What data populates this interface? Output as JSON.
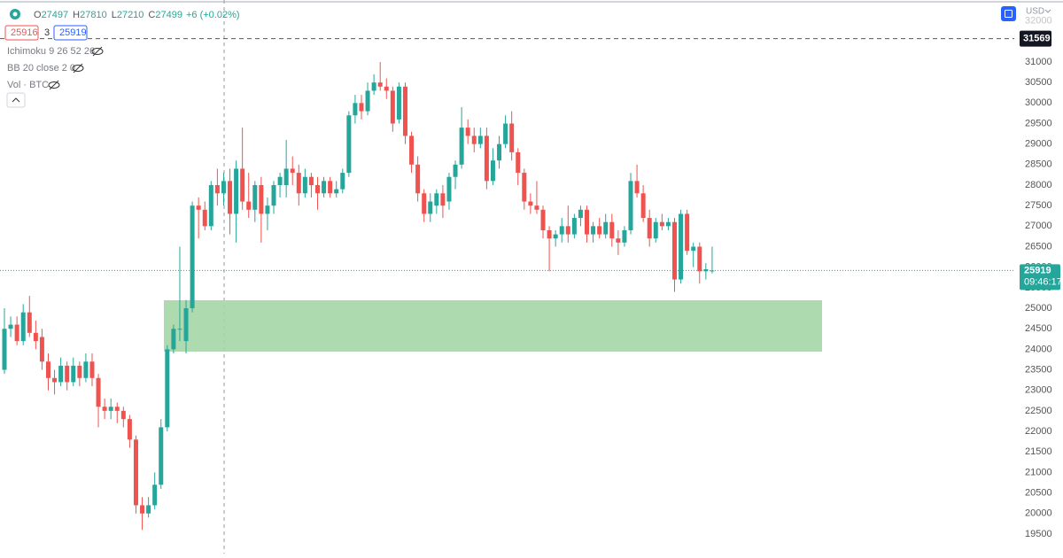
{
  "chart_data": {
    "type": "candlestick",
    "header": {
      "ohlc_labels": [
        "O",
        "H",
        "L",
        "C"
      ],
      "values": [
        27497,
        27810,
        27210,
        27499
      ],
      "change": "+6 (+0.02%)",
      "bid": 25916,
      "spread": 3,
      "ask": 25919,
      "indicators": [
        "Ichimoku 9 26 52 26",
        "BB 20 close 2 0",
        "Vol · BTC"
      ]
    },
    "currency": "USD",
    "up_color": "#26a69a",
    "down_color": "#ef5350",
    "ylim": [
      19023,
      32510
    ],
    "yticks": [
      19500,
      20000,
      20500,
      21000,
      21500,
      22000,
      22500,
      23000,
      23500,
      24000,
      24500,
      25000,
      25500,
      26000,
      26500,
      27000,
      27500,
      28000,
      28500,
      29000,
      29500,
      30000,
      30500,
      31000,
      31500,
      32000
    ],
    "high_marker": 31569,
    "last_price": 25919,
    "countdown": "09:46:17",
    "zone": {
      "low": 23944,
      "high": 25195,
      "color": "#a5d6a7"
    },
    "candles": [
      [
        23500,
        25000,
        23400,
        24500
      ],
      [
        24500,
        24800,
        24300,
        24600
      ],
      [
        24600,
        24800,
        24100,
        24200
      ],
      [
        24200,
        25100,
        24100,
        24900
      ],
      [
        24900,
        25300,
        24300,
        24400
      ],
      [
        24400,
        24700,
        24000,
        24200
      ],
      [
        24300,
        24500,
        23500,
        23700
      ],
      [
        23700,
        23900,
        23000,
        23300
      ],
      [
        23300,
        23500,
        22900,
        23200
      ],
      [
        23200,
        23800,
        23100,
        23600
      ],
      [
        23600,
        23700,
        23000,
        23200
      ],
      [
        23200,
        23800,
        23100,
        23600
      ],
      [
        23600,
        23700,
        23100,
        23300
      ],
      [
        23300,
        23900,
        23200,
        23700
      ],
      [
        23700,
        23900,
        23100,
        23300
      ],
      [
        23300,
        23400,
        22100,
        22600
      ],
      [
        22600,
        22800,
        22300,
        22500
      ],
      [
        22500,
        22800,
        22300,
        22600
      ],
      [
        22600,
        22700,
        22200,
        22500
      ],
      [
        22500,
        22600,
        22100,
        22300
      ],
      [
        22300,
        22400,
        21600,
        21800
      ],
      [
        21800,
        21900,
        20000,
        20200
      ],
      [
        20200,
        20400,
        19600,
        20000
      ],
      [
        20000,
        20400,
        19900,
        20200
      ],
      [
        20200,
        21000,
        20100,
        20700
      ],
      [
        20700,
        22300,
        20600,
        22100
      ],
      [
        22100,
        24100,
        22000,
        24000
      ],
      [
        24000,
        24600,
        23900,
        24500
      ],
      [
        24500,
        26500,
        24200,
        24500
      ],
      [
        24200,
        25200,
        23900,
        25000
      ],
      [
        25000,
        27600,
        24900,
        27500
      ],
      [
        27500,
        27700,
        26700,
        27400
      ],
      [
        27400,
        27600,
        26900,
        27000
      ],
      [
        27000,
        28100,
        26900,
        28000
      ],
      [
        28000,
        28400,
        27500,
        27800
      ],
      [
        27800,
        28300,
        27500,
        28100
      ],
      [
        28100,
        28400,
        26800,
        27300
      ],
      [
        27300,
        28600,
        26600,
        28400
      ],
      [
        28400,
        29400,
        27400,
        27600
      ],
      [
        27600,
        28300,
        27200,
        27400
      ],
      [
        27400,
        28100,
        27100,
        28000
      ],
      [
        28000,
        28200,
        26600,
        27300
      ],
      [
        27300,
        27700,
        26900,
        27500
      ],
      [
        27500,
        28100,
        27300,
        28000
      ],
      [
        28000,
        28300,
        27700,
        28200
      ],
      [
        28000,
        29100,
        27700,
        28400
      ],
      [
        28400,
        28700,
        28000,
        28300
      ],
      [
        28300,
        28500,
        27500,
        27800
      ],
      [
        27800,
        28400,
        27700,
        28200
      ],
      [
        28200,
        28300,
        27700,
        28000
      ],
      [
        28000,
        28200,
        27400,
        27800
      ],
      [
        27800,
        28200,
        27700,
        28100
      ],
      [
        28100,
        28200,
        27700,
        27800
      ],
      [
        27800,
        28100,
        27700,
        27900
      ],
      [
        27900,
        28400,
        27800,
        28300
      ],
      [
        28300,
        29800,
        28200,
        29700
      ],
      [
        29700,
        30200,
        29500,
        30000
      ],
      [
        30000,
        30200,
        29600,
        29800
      ],
      [
        29800,
        30500,
        29700,
        30300
      ],
      [
        30300,
        30700,
        30200,
        30500
      ],
      [
        30500,
        31000,
        30300,
        30400
      ],
      [
        30400,
        30600,
        30100,
        30300
      ],
      [
        30300,
        30400,
        29300,
        29500
      ],
      [
        29600,
        30500,
        29500,
        30400
      ],
      [
        30400,
        30500,
        29000,
        29200
      ],
      [
        29200,
        29300,
        28300,
        28500
      ],
      [
        28500,
        28700,
        27600,
        27800
      ],
      [
        27800,
        27900,
        27100,
        27300
      ],
      [
        27300,
        27800,
        27100,
        27600
      ],
      [
        27500,
        27900,
        27300,
        27800
      ],
      [
        27800,
        28000,
        27200,
        27500
      ],
      [
        27600,
        28300,
        27400,
        28200
      ],
      [
        28200,
        28600,
        27900,
        28500
      ],
      [
        28500,
        29900,
        28400,
        29400
      ],
      [
        29400,
        29600,
        29000,
        29200
      ],
      [
        29200,
        29400,
        28800,
        29000
      ],
      [
        29000,
        29400,
        28900,
        29200
      ],
      [
        29200,
        29400,
        27900,
        28100
      ],
      [
        28100,
        28900,
        28000,
        28600
      ],
      [
        28600,
        29200,
        28400,
        29000
      ],
      [
        29000,
        29700,
        28900,
        29500
      ],
      [
        29500,
        29800,
        28600,
        28800
      ],
      [
        28800,
        28900,
        28000,
        28300
      ],
      [
        28300,
        28400,
        27400,
        27600
      ],
      [
        27600,
        27800,
        27300,
        27500
      ],
      [
        27500,
        28100,
        27300,
        27400
      ],
      [
        27400,
        27500,
        26700,
        26900
      ],
      [
        26900,
        27000,
        25900,
        26700
      ],
      [
        26700,
        26900,
        26500,
        26800
      ],
      [
        26800,
        27200,
        26600,
        27000
      ],
      [
        27000,
        27500,
        26600,
        26800
      ],
      [
        26800,
        27300,
        26700,
        27200
      ],
      [
        27200,
        27500,
        27000,
        27400
      ],
      [
        27400,
        27500,
        26600,
        26800
      ],
      [
        26800,
        27100,
        26600,
        27000
      ],
      [
        27000,
        27200,
        26700,
        26800
      ],
      [
        26800,
        27300,
        26700,
        27100
      ],
      [
        27100,
        27300,
        26500,
        26700
      ],
      [
        26700,
        26900,
        26300,
        26600
      ],
      [
        26600,
        27000,
        26500,
        26900
      ],
      [
        26900,
        28300,
        26800,
        28100
      ],
      [
        28100,
        28500,
        27700,
        27800
      ],
      [
        27800,
        28000,
        27100,
        27200
      ],
      [
        27200,
        27400,
        26500,
        26700
      ],
      [
        26700,
        27200,
        26600,
        27100
      ],
      [
        27100,
        27300,
        26900,
        27000
      ],
      [
        27000,
        27200,
        26900,
        27100
      ],
      [
        27100,
        27200,
        25400,
        25700
      ],
      [
        25700,
        27400,
        25600,
        27300
      ],
      [
        27300,
        27400,
        26300,
        26400
      ],
      [
        26400,
        26600,
        26000,
        26500
      ],
      [
        26500,
        26600,
        25600,
        25900
      ],
      [
        25900,
        26100,
        25700,
        25950
      ],
      [
        25916,
        26500,
        25850,
        25919
      ]
    ]
  }
}
